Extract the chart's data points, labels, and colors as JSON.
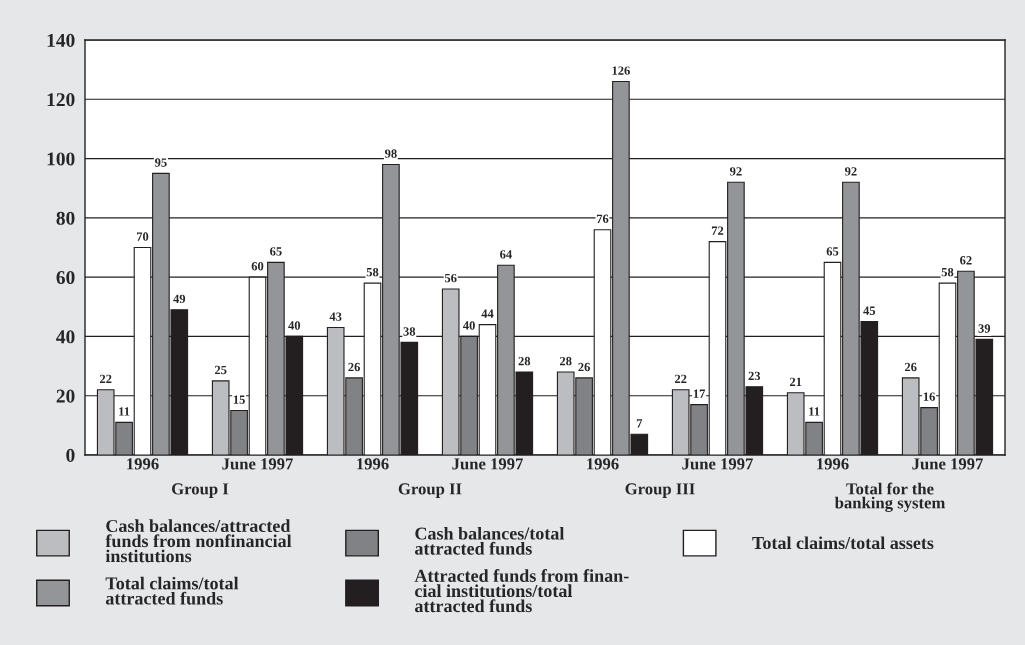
{
  "chart_data": {
    "type": "bar",
    "categories": [
      "1996",
      "June 1997",
      "1996",
      "June 1997",
      "1996",
      "June 1997",
      "1996",
      "June 1997"
    ],
    "series": [
      {
        "name": "Cash balances/attracted\nfunds from nonfinancial\ninstitutions",
        "color": "#bcbdc0",
        "values": [
          22,
          25,
          43,
          56,
          28,
          22,
          21,
          26
        ]
      },
      {
        "name": "Cash balances/total\nattracted funds",
        "color": "#808285",
        "values": [
          11,
          15,
          26,
          40,
          26,
          17,
          11,
          16
        ]
      },
      {
        "name": "Total claims/total assets",
        "color": "#ffffff",
        "values": [
          70,
          60,
          58,
          44,
          76,
          72,
          65,
          58
        ]
      },
      {
        "name": "Total claims/total\nattracted funds",
        "color": "#939598",
        "values": [
          95,
          65,
          98,
          64,
          126,
          92,
          92,
          62
        ]
      },
      {
        "name": "Attracted funds from finan-\ncial institutions/total\nattracted funds",
        "color": "#231f20",
        "values": [
          49,
          40,
          38,
          28,
          7,
          23,
          45,
          39
        ]
      }
    ],
    "annotations": [
      "Group I",
      "Group II",
      "Group III",
      "Total for the\nbanking system"
    ],
    "ylim": [
      0,
      140
    ],
    "yticks": [
      0,
      20,
      40,
      60,
      80,
      100,
      120,
      140
    ],
    "grid": "y",
    "data_labels": true,
    "legend": "bottom"
  }
}
